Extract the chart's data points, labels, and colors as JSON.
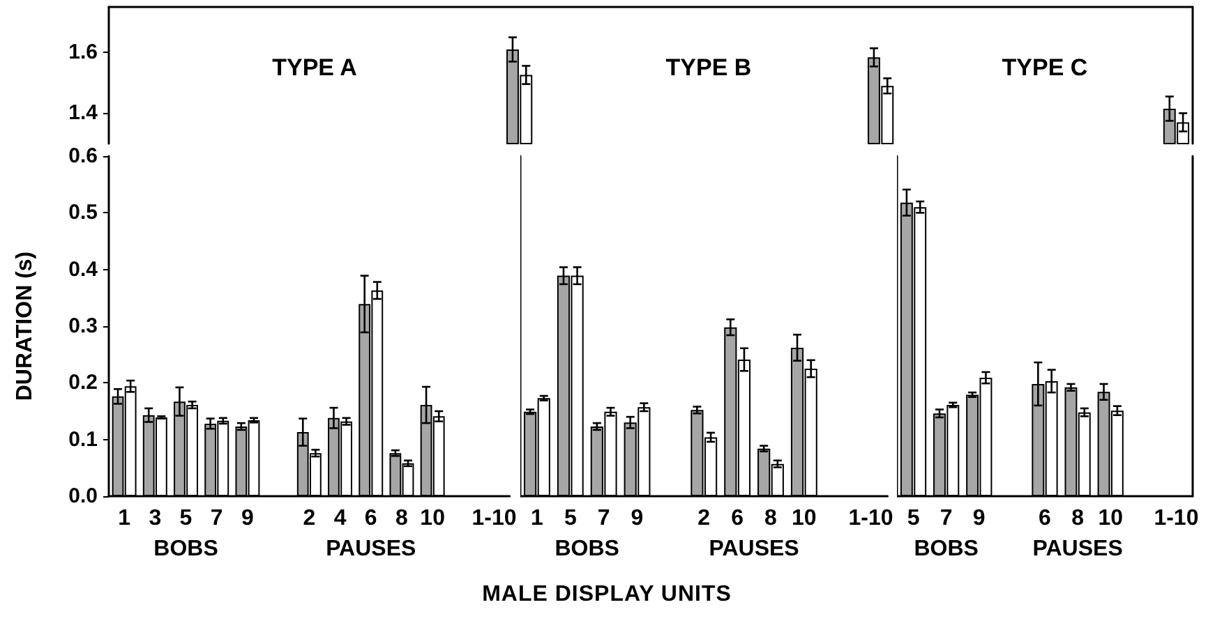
{
  "chart_data": [
    {
      "type": "bar",
      "annotations": [
        "TYPE A",
        "TYPE B",
        "TYPE C"
      ],
      "categories": [
        null,
        null,
        null,
        null,
        null,
        null,
        null,
        null,
        null,
        null,
        null,
        null,
        null,
        null,
        null,
        null,
        null,
        null,
        null,
        null,
        null,
        null,
        null,
        null,
        null,
        null,
        null,
        null,
        null,
        null,
        null,
        null,
        null
      ],
      "series": [
        {
          "color": "#a6a6a6",
          "values": [
            null,
            null,
            null,
            null,
            null,
            null,
            null,
            null,
            null,
            null,
            null,
            null,
            1.61,
            null,
            null,
            null,
            null,
            null,
            null,
            null,
            null,
            null,
            null,
            1.584,
            null,
            null,
            null,
            null,
            null,
            null,
            null,
            null,
            1.415
          ],
          "errors": [
            null,
            null,
            null,
            null,
            null,
            null,
            null,
            null,
            null,
            null,
            null,
            null,
            0.04,
            null,
            null,
            null,
            null,
            null,
            null,
            null,
            null,
            null,
            null,
            0.03,
            null,
            null,
            null,
            null,
            null,
            null,
            null,
            null,
            0.04
          ]
        },
        {
          "color": "#ffffff",
          "values": [
            null,
            null,
            null,
            null,
            null,
            null,
            null,
            null,
            null,
            null,
            null,
            null,
            1.526,
            null,
            null,
            null,
            null,
            null,
            null,
            null,
            null,
            null,
            null,
            1.49,
            null,
            null,
            null,
            null,
            null,
            null,
            null,
            null,
            1.37
          ],
          "errors": [
            null,
            null,
            null,
            null,
            null,
            null,
            null,
            null,
            null,
            null,
            null,
            null,
            0.03,
            null,
            null,
            null,
            null,
            null,
            null,
            null,
            null,
            null,
            null,
            0.025,
            null,
            null,
            null,
            null,
            null,
            null,
            null,
            null,
            0.03
          ]
        }
      ],
      "ylim": [
        1.3,
        1.75
      ],
      "yticks": [
        1.4,
        1.6
      ],
      "tick_labels": "y"
    },
    {
      "type": "bar",
      "ylabel": "DURATION (s)",
      "categories": [
        "1",
        "3",
        "5",
        "7",
        "9",
        null,
        "2",
        "4",
        "6",
        "8",
        "10",
        null,
        "1-10"
      ],
      "series": [
        {
          "color": "#a6a6a6",
          "values": [
            0.176,
            0.143,
            0.167,
            0.128,
            0.123,
            null,
            0.113,
            0.138,
            0.339,
            0.076,
            0.161,
            null,
            null
          ],
          "errors": [
            0.013,
            0.012,
            0.025,
            0.009,
            0.006,
            null,
            0.024,
            0.018,
            0.05,
            0.005,
            0.032,
            null,
            null
          ]
        },
        {
          "color": "#ffffff",
          "values": [
            0.194,
            0.139,
            0.161,
            0.133,
            0.134,
            null,
            0.076,
            0.132,
            0.363,
            0.058,
            0.141,
            null,
            null
          ],
          "errors": [
            0.01,
            0.002,
            0.006,
            0.005,
            0.004,
            null,
            0.006,
            0.006,
            0.015,
            0.005,
            0.009,
            null,
            null
          ]
        }
      ],
      "ylim": [
        0,
        0.6
      ],
      "yticks": [
        {
          "value": 0,
          "label": "0.0"
        },
        0.1,
        0.2,
        0.3,
        0.4,
        0.5,
        0.6
      ],
      "annotations": [
        "BOBS",
        "PAUSES"
      ]
    },
    {
      "type": "bar",
      "xlabel": "MALE DISPLAY UNITS",
      "categories": [
        "1",
        "5",
        "7",
        "9",
        null,
        "2",
        "6",
        "8",
        "10",
        null,
        "1-10"
      ],
      "series": [
        {
          "color": "#a6a6a6",
          "values": [
            0.149,
            0.389,
            0.123,
            0.13,
            null,
            0.152,
            0.298,
            0.084,
            0.262,
            null,
            null
          ],
          "errors": [
            0.004,
            0.015,
            0.006,
            0.01,
            null,
            0.006,
            0.014,
            0.005,
            0.023,
            null,
            null
          ]
        },
        {
          "color": "#ffffff",
          "values": [
            0.173,
            0.389,
            0.149,
            0.157,
            null,
            0.104,
            0.241,
            0.057,
            0.225,
            null,
            null
          ],
          "errors": [
            0.004,
            0.015,
            0.007,
            0.007,
            null,
            0.008,
            0.02,
            0.006,
            0.015,
            null,
            null
          ]
        }
      ],
      "ylim": [
        0,
        0.6
      ],
      "tick_labels": "x",
      "annotations": [
        "BOBS",
        "PAUSES"
      ]
    },
    {
      "type": "bar",
      "categories": [
        "5",
        "7",
        "9",
        null,
        "6",
        "8",
        "10",
        null,
        "1-10"
      ],
      "series": [
        {
          "color": "#a6a6a6",
          "values": [
            0.518,
            0.146,
            0.179,
            null,
            0.198,
            0.192,
            0.184,
            null,
            null
          ],
          "errors": [
            0.023,
            0.007,
            0.004,
            null,
            0.038,
            0.006,
            0.014,
            null,
            null
          ]
        },
        {
          "color": "#ffffff",
          "values": [
            0.51,
            0.161,
            0.209,
            null,
            0.203,
            0.148,
            0.151,
            null,
            null
          ],
          "errors": [
            0.01,
            0.004,
            0.01,
            null,
            0.02,
            0.007,
            0.008,
            null,
            null
          ]
        }
      ],
      "ylim": [
        0,
        0.6
      ],
      "tick_labels": "x",
      "annotations": [
        "BOBS",
        "PAUSES"
      ]
    }
  ]
}
